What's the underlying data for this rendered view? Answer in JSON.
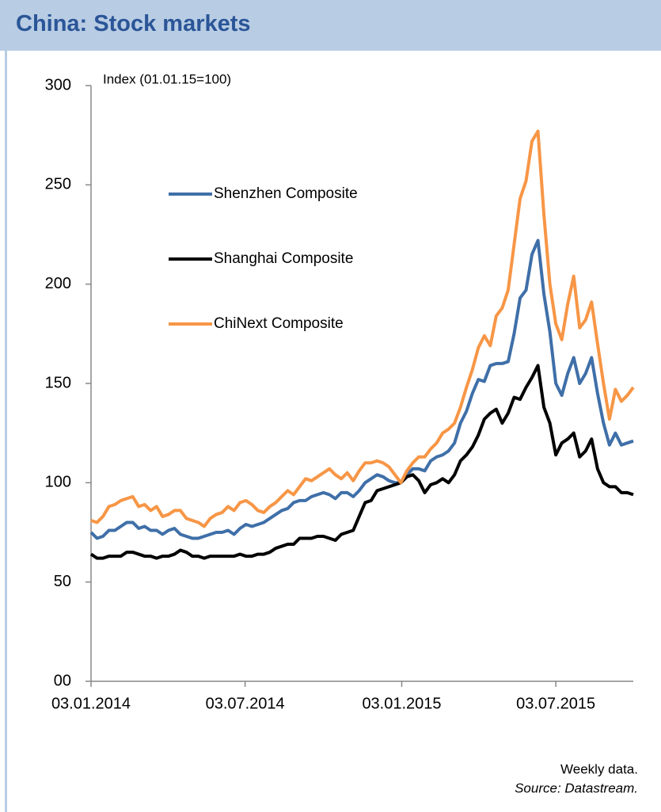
{
  "chart_data": {
    "type": "line",
    "title": "China: Stock markets",
    "y_label": "Index (01.01.15=100)",
    "notes": [
      "Weekly data.",
      "Source: Datastream."
    ],
    "legend": "upper left",
    "x": [
      "03.01.2014",
      "10.01.2014",
      "17.01.2014",
      "24.01.2014",
      "31.01.2014",
      "07.02.2014",
      "14.02.2014",
      "21.02.2014",
      "28.02.2014",
      "07.03.2014",
      "14.03.2014",
      "21.03.2014",
      "28.03.2014",
      "04.04.2014",
      "11.04.2014",
      "18.04.2014",
      "25.04.2014",
      "02.05.2014",
      "09.05.2014",
      "16.05.2014",
      "23.05.2014",
      "30.05.2014",
      "06.06.2014",
      "13.06.2014",
      "20.06.2014",
      "27.06.2014",
      "04.07.2014",
      "11.07.2014",
      "18.07.2014",
      "25.07.2014",
      "01.08.2014",
      "08.08.2014",
      "15.08.2014",
      "22.08.2014",
      "29.08.2014",
      "05.09.2014",
      "12.09.2014",
      "19.09.2014",
      "26.09.2014",
      "03.10.2014",
      "10.10.2014",
      "17.10.2014",
      "24.10.2014",
      "31.10.2014",
      "07.11.2014",
      "14.11.2014",
      "21.11.2014",
      "28.11.2014",
      "05.12.2014",
      "12.12.2014",
      "19.12.2014",
      "26.12.2014",
      "02.01.2015",
      "09.01.2015",
      "16.01.2015",
      "23.01.2015",
      "30.01.2015",
      "06.02.2015",
      "13.02.2015",
      "20.02.2015",
      "27.02.2015",
      "06.03.2015",
      "13.03.2015",
      "20.03.2015",
      "27.03.2015",
      "03.04.2015",
      "10.04.2015",
      "17.04.2015",
      "24.04.2015",
      "01.05.2015",
      "08.05.2015",
      "15.05.2015",
      "22.05.2015",
      "29.05.2015",
      "05.06.2015",
      "12.06.2015",
      "19.06.2015",
      "26.06.2015",
      "03.07.2015",
      "10.07.2015",
      "17.07.2015",
      "24.07.2015",
      "31.07.2015",
      "07.08.2015",
      "14.08.2015",
      "21.08.2015",
      "28.08.2015",
      "04.09.2015",
      "11.09.2015",
      "18.09.2015",
      "25.09.2015",
      "02.10.2015"
    ],
    "series": [
      {
        "name": "Shenzhen Composite",
        "color": "#3f6fa8",
        "values": [
          75,
          72,
          73,
          76,
          76,
          78,
          80,
          80,
          77,
          78,
          76,
          76,
          74,
          76,
          77,
          74,
          73,
          72,
          72,
          73,
          74,
          75,
          75,
          76,
          74,
          77,
          79,
          78,
          79,
          80,
          82,
          84,
          86,
          87,
          90,
          91,
          91,
          93,
          94,
          95,
          94,
          92,
          95,
          95,
          93,
          96,
          100,
          102,
          104,
          103,
          101,
          100,
          100,
          104,
          107,
          107,
          106,
          111,
          113,
          114,
          116,
          120,
          130,
          136,
          145,
          152,
          151,
          159,
          160,
          160,
          161,
          175,
          193,
          197,
          215,
          222,
          195,
          176,
          150,
          144,
          155,
          163,
          150,
          155,
          163,
          145,
          130,
          119,
          125,
          119,
          120,
          121
        ]
      },
      {
        "name": "Shanghai Composite",
        "color": "#000000",
        "values": [
          64,
          62,
          62,
          63,
          63,
          63,
          65,
          65,
          64,
          63,
          63,
          62,
          63,
          63,
          64,
          66,
          65,
          63,
          63,
          62,
          63,
          63,
          63,
          63,
          63,
          64,
          63,
          63,
          64,
          64,
          65,
          67,
          68,
          69,
          69,
          72,
          72,
          72,
          73,
          73,
          72,
          71,
          74,
          75,
          76,
          83,
          90,
          91,
          96,
          97,
          98,
          99,
          100,
          103,
          104,
          101,
          95,
          99,
          100,
          102,
          100,
          104,
          111,
          114,
          118,
          124,
          132,
          135,
          137,
          130,
          135,
          143,
          142,
          148,
          153,
          159,
          138,
          130,
          114,
          120,
          122,
          125,
          113,
          116,
          122,
          107,
          100,
          98,
          98,
          95,
          95,
          94
        ]
      },
      {
        "name": "ChiNext Composite",
        "color": "#f79646",
        "values": [
          81,
          80,
          83,
          88,
          89,
          91,
          92,
          93,
          88,
          89,
          86,
          88,
          83,
          84,
          86,
          86,
          82,
          81,
          80,
          78,
          82,
          84,
          85,
          88,
          86,
          90,
          91,
          89,
          86,
          85,
          88,
          90,
          93,
          96,
          94,
          98,
          102,
          101,
          103,
          105,
          107,
          104,
          102,
          105,
          101,
          106,
          110,
          110,
          111,
          110,
          108,
          104,
          100,
          106,
          110,
          113,
          113,
          117,
          120,
          125,
          127,
          130,
          138,
          148,
          157,
          168,
          174,
          169,
          184,
          188,
          197,
          220,
          243,
          252,
          272,
          277,
          235,
          200,
          180,
          172,
          190,
          204,
          178,
          182,
          191,
          170,
          150,
          132,
          147,
          141,
          144,
          148
        ]
      }
    ],
    "xlim": [
      "03.01.2014",
      "02.10.2015"
    ],
    "xticks": [
      "03.01.2014",
      "03.07.2014",
      "03.01.2015",
      "03.07.2015"
    ],
    "ylim": [
      0,
      300
    ],
    "yticks": [
      {
        "value": 0,
        "label": "00"
      },
      50,
      100,
      150,
      200,
      250,
      300
    ]
  }
}
